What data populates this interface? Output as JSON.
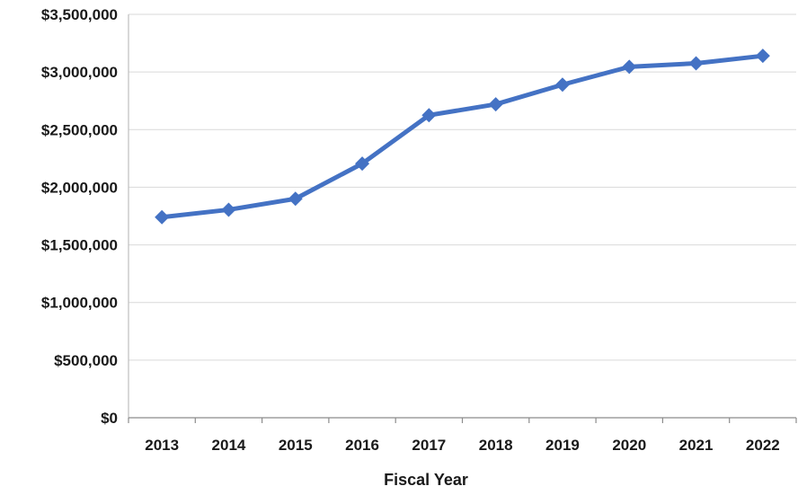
{
  "chart_data": {
    "type": "line",
    "title": "",
    "xlabel": "Fiscal Year",
    "ylabel": "",
    "categories": [
      "2013",
      "2014",
      "2015",
      "2016",
      "2017",
      "2018",
      "2019",
      "2020",
      "2021",
      "2022"
    ],
    "series": [
      {
        "values": [
          1740000,
          1805000,
          1900000,
          2205000,
          2625000,
          2720000,
          2890000,
          3045000,
          3075000,
          3140000
        ]
      }
    ],
    "ylim": [
      0,
      3500000
    ],
    "y_ticks": [
      0,
      500000,
      1000000,
      1500000,
      2000000,
      2500000,
      3000000,
      3500000
    ],
    "y_tick_labels": [
      "$0",
      "$500,000",
      "$1,000,000",
      "$1,500,000",
      "$2,000,000",
      "$2,500,000",
      "$3,000,000",
      "$3,500,000"
    ],
    "grid": true,
    "legend": "none",
    "line_color": "#4472C4",
    "gridline_color": "#D9D9D9",
    "marker": "diamond"
  }
}
